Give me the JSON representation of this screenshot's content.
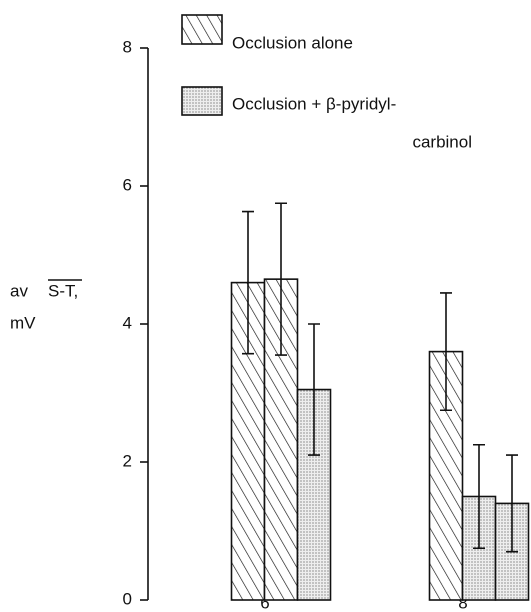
{
  "chart_data": {
    "type": "bar",
    "ylabel": [
      "av",
      "S-T,",
      "mV"
    ],
    "categories": [
      "6",
      "8"
    ],
    "series": [
      {
        "name": [
          "Occlusion alone"
        ],
        "pattern": "hatch"
      },
      {
        "name": [
          "Occlusion + β-pyridyl-",
          "carbinol"
        ],
        "pattern": "dots"
      }
    ],
    "bars": [
      {
        "category": 0,
        "series": 0,
        "value": 4.6,
        "error": 1.03
      },
      {
        "category": 0,
        "series": 0,
        "value": 4.65,
        "error": 1.1
      },
      {
        "category": 0,
        "series": 1,
        "value": 3.05,
        "error": 0.95
      },
      {
        "category": 1,
        "series": 0,
        "value": 3.6,
        "error": 0.85
      },
      {
        "category": 1,
        "series": 1,
        "value": 1.5,
        "error": 0.75
      },
      {
        "category": 1,
        "series": 1,
        "value": 1.4,
        "error": 0.7
      }
    ],
    "ylim": [
      0,
      8
    ],
    "yticks": [
      0,
      2,
      4,
      6,
      8
    ]
  }
}
